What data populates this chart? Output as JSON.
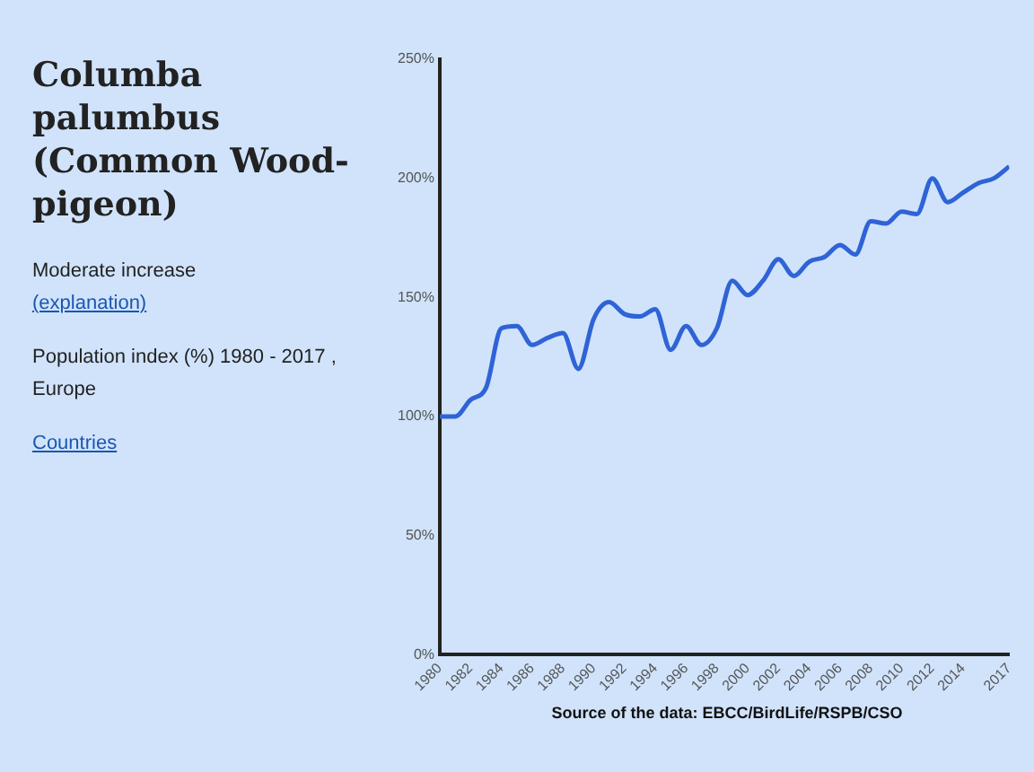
{
  "chart_data": {
    "type": "line",
    "title": "Columba palumbus (Common Wood-pigeon)",
    "subtitle": "Moderate increase",
    "annotations": [
      "(explanation)",
      "Population index (%) 1980 - 2017 , Europe",
      "Countries",
      "Source of the data: EBCC/BirdLife/RSPB/CSO"
    ],
    "x": [
      1980,
      1981,
      1982,
      1983,
      1984,
      1985,
      1986,
      1987,
      1988,
      1989,
      1990,
      1991,
      1992,
      1993,
      1994,
      1995,
      1996,
      1997,
      1998,
      1999,
      2000,
      2001,
      2002,
      2003,
      2004,
      2005,
      2006,
      2007,
      2008,
      2009,
      2010,
      2011,
      2012,
      2013,
      2014,
      2015,
      2016,
      2017
    ],
    "series": [
      {
        "color": "#2f63d6",
        "values": [
          100,
          100,
          107,
          112,
          137,
          138,
          130,
          133,
          135,
          120,
          141,
          148,
          143,
          142,
          145,
          128,
          138,
          130,
          137,
          157,
          151,
          157,
          166,
          159,
          165,
          167,
          172,
          168,
          182,
          181,
          186,
          185,
          200,
          190,
          194,
          198,
          200,
          205
        ]
      }
    ],
    "xlim": [
      1980,
      2017
    ],
    "xticks": [
      1980,
      1982,
      1984,
      1986,
      1988,
      1990,
      1992,
      1994,
      1996,
      1998,
      2000,
      2002,
      2004,
      2006,
      2008,
      2010,
      2012,
      2014,
      2017
    ],
    "ylim": [
      0,
      250
    ],
    "yticks": [
      {
        "value": 0,
        "label": "0%"
      },
      {
        "value": 50,
        "label": "50%"
      },
      {
        "value": 100,
        "label": "100%"
      },
      {
        "value": 150,
        "label": "150%"
      },
      {
        "value": 200,
        "label": "200%"
      },
      {
        "value": 250,
        "label": "250%"
      }
    ],
    "marker": "none",
    "line_style": "solid"
  }
}
